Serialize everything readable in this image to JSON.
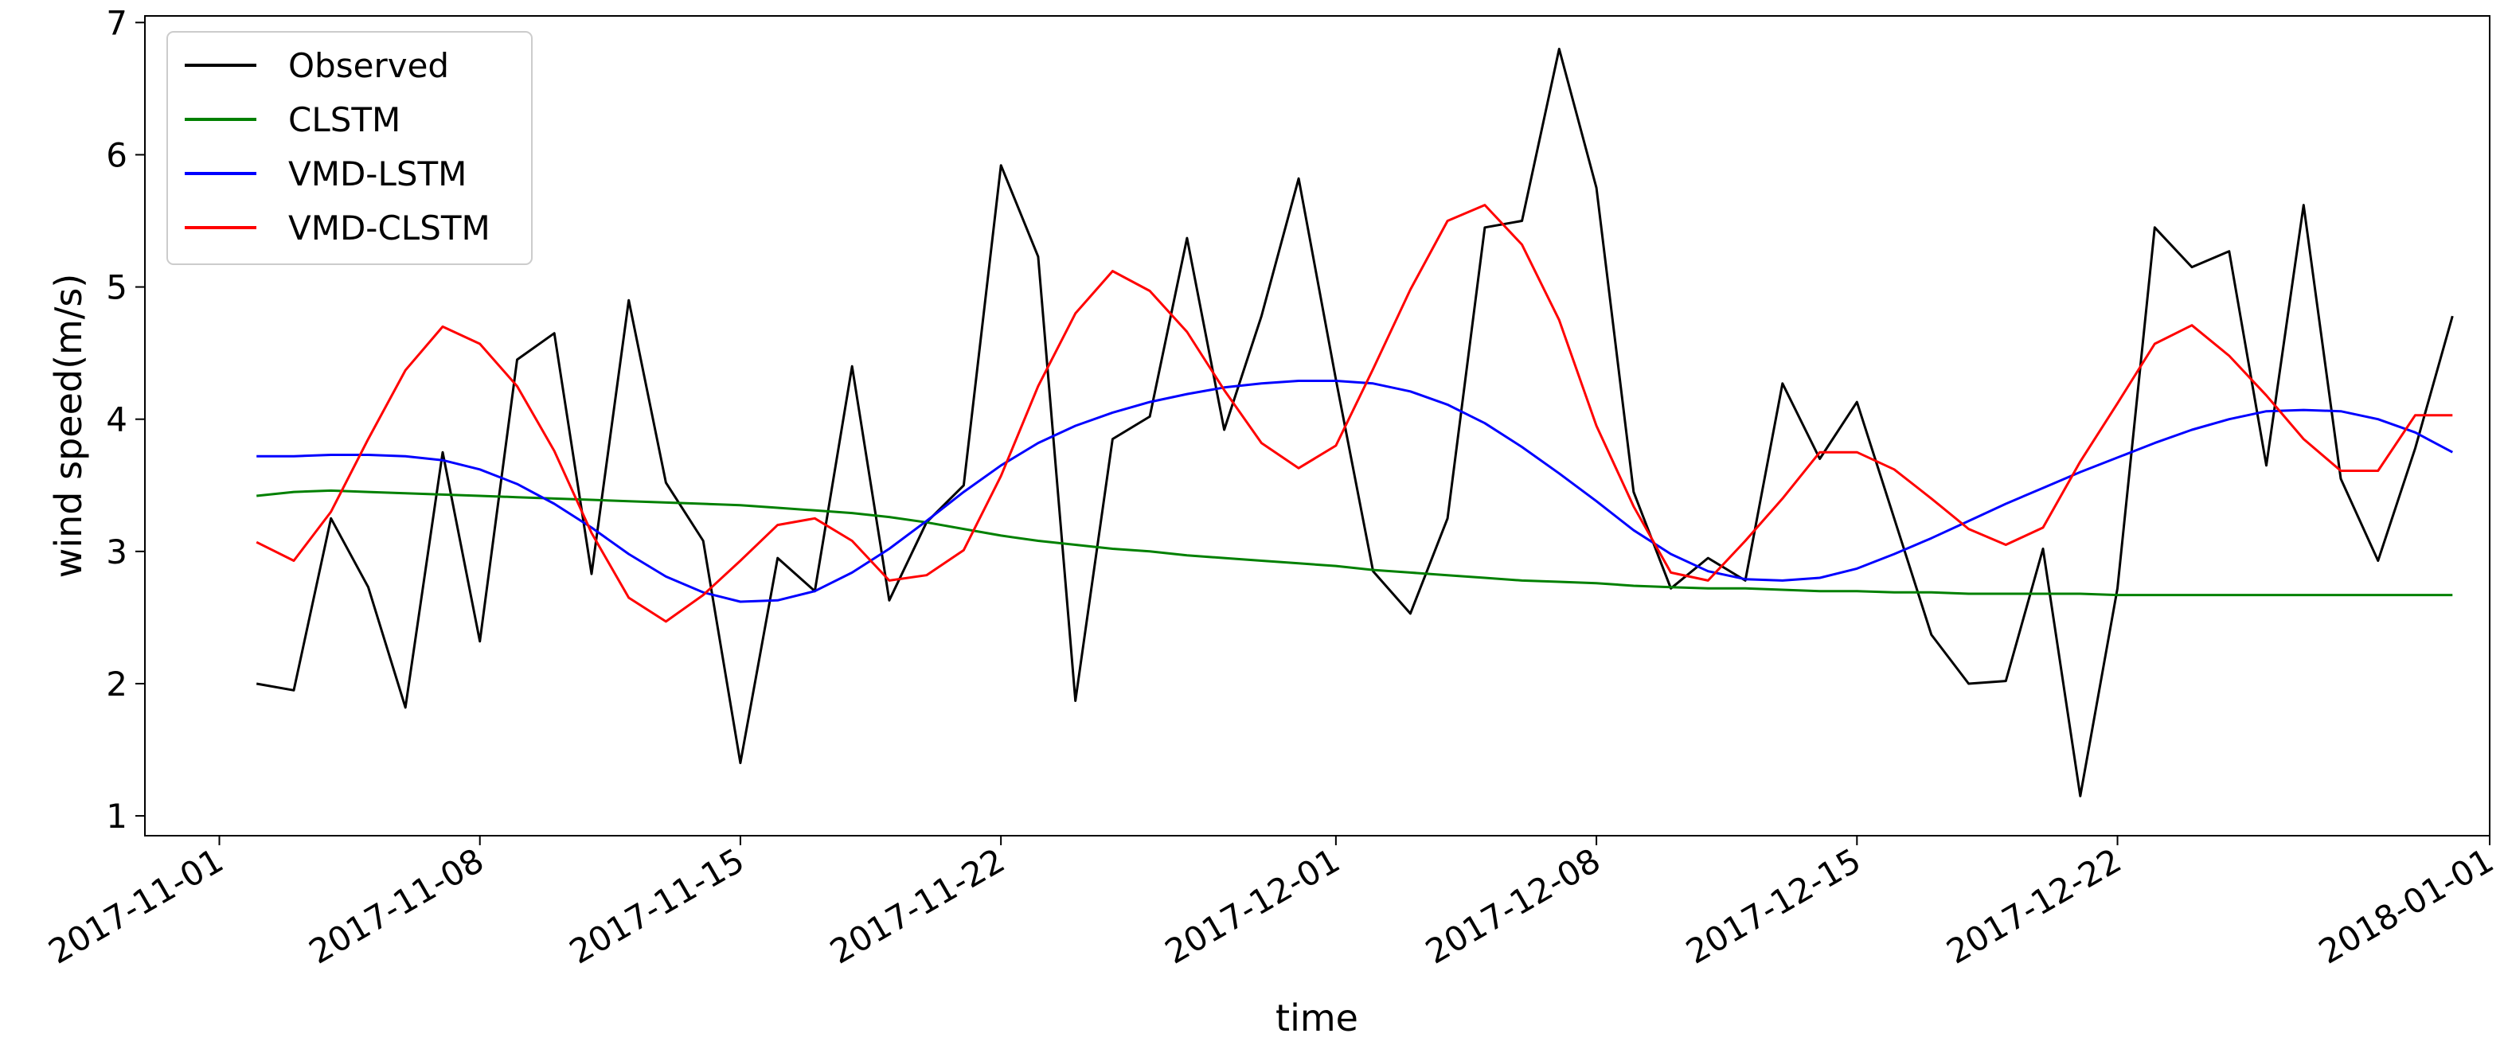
{
  "chart_data": {
    "type": "line",
    "title": "",
    "xlabel": "time",
    "ylabel": "wind speed(m/s)",
    "xlim": [
      "2017-10-30",
      "2018-01-01"
    ],
    "ylim": [
      0.85,
      7.05
    ],
    "grid": false,
    "legend_position": "upper-left",
    "x_ticks": [
      "2017-11-01",
      "2017-11-08",
      "2017-11-15",
      "2017-11-22",
      "2017-12-01",
      "2017-12-08",
      "2017-12-15",
      "2017-12-22",
      "2018-01-01"
    ],
    "y_ticks": [
      1,
      2,
      3,
      4,
      5,
      6,
      7
    ],
    "x": [
      "2017-11-02",
      "2017-11-03",
      "2017-11-04",
      "2017-11-05",
      "2017-11-06",
      "2017-11-07",
      "2017-11-08",
      "2017-11-09",
      "2017-11-10",
      "2017-11-11",
      "2017-11-12",
      "2017-11-13",
      "2017-11-14",
      "2017-11-15",
      "2017-11-16",
      "2017-11-17",
      "2017-11-18",
      "2017-11-19",
      "2017-11-20",
      "2017-11-21",
      "2017-11-22",
      "2017-11-23",
      "2017-11-24",
      "2017-11-25",
      "2017-11-26",
      "2017-11-27",
      "2017-11-28",
      "2017-11-29",
      "2017-11-30",
      "2017-12-01",
      "2017-12-02",
      "2017-12-03",
      "2017-12-04",
      "2017-12-05",
      "2017-12-06",
      "2017-12-07",
      "2017-12-08",
      "2017-12-09",
      "2017-12-10",
      "2017-12-11",
      "2017-12-12",
      "2017-12-13",
      "2017-12-14",
      "2017-12-15",
      "2017-12-16",
      "2017-12-17",
      "2017-12-18",
      "2017-12-19",
      "2017-12-20",
      "2017-12-21",
      "2017-12-22",
      "2017-12-23",
      "2017-12-24",
      "2017-12-25",
      "2017-12-26",
      "2017-12-27",
      "2017-12-28",
      "2017-12-29",
      "2017-12-30",
      "2017-12-31"
    ],
    "series": [
      {
        "name": "Observed",
        "color": "#000000",
        "values": [
          2.0,
          1.95,
          3.25,
          2.73,
          1.82,
          3.75,
          2.32,
          4.45,
          4.65,
          2.83,
          4.9,
          3.52,
          3.08,
          1.4,
          2.95,
          2.7,
          4.4,
          2.63,
          3.22,
          3.5,
          5.92,
          5.23,
          1.87,
          3.85,
          4.02,
          5.37,
          3.92,
          4.78,
          5.82,
          4.3,
          2.85,
          2.53,
          3.25,
          5.45,
          5.5,
          6.8,
          5.75,
          3.45,
          2.72,
          2.95,
          2.78,
          4.27,
          3.7,
          4.13,
          3.25,
          2.37,
          2.0,
          2.02,
          3.02,
          1.15,
          2.72,
          5.45,
          5.15,
          5.27,
          3.65,
          5.62,
          3.55,
          2.93,
          3.78,
          4.78
        ]
      },
      {
        "name": "CLSTM",
        "color": "#008000",
        "values": [
          3.42,
          3.45,
          3.46,
          3.45,
          3.44,
          3.43,
          3.42,
          3.41,
          3.4,
          3.39,
          3.38,
          3.37,
          3.36,
          3.35,
          3.33,
          3.31,
          3.29,
          3.26,
          3.22,
          3.17,
          3.12,
          3.08,
          3.05,
          3.02,
          3.0,
          2.97,
          2.95,
          2.93,
          2.91,
          2.89,
          2.86,
          2.84,
          2.82,
          2.8,
          2.78,
          2.77,
          2.76,
          2.74,
          2.73,
          2.72,
          2.72,
          2.71,
          2.7,
          2.7,
          2.69,
          2.69,
          2.68,
          2.68,
          2.68,
          2.68,
          2.67,
          2.67,
          2.67,
          2.67,
          2.67,
          2.67,
          2.67,
          2.67,
          2.67,
          2.67
        ]
      },
      {
        "name": "VMD-LSTM",
        "color": "#0000ff",
        "values": [
          3.72,
          3.72,
          3.73,
          3.73,
          3.72,
          3.69,
          3.62,
          3.51,
          3.36,
          3.18,
          2.98,
          2.81,
          2.69,
          2.62,
          2.63,
          2.7,
          2.84,
          3.02,
          3.23,
          3.45,
          3.65,
          3.82,
          3.95,
          4.05,
          4.13,
          4.19,
          4.24,
          4.27,
          4.29,
          4.29,
          4.27,
          4.21,
          4.11,
          3.97,
          3.79,
          3.59,
          3.38,
          3.16,
          2.98,
          2.85,
          2.79,
          2.78,
          2.8,
          2.87,
          2.98,
          3.1,
          3.23,
          3.36,
          3.48,
          3.6,
          3.71,
          3.82,
          3.92,
          4.0,
          4.06,
          4.07,
          4.06,
          4.0,
          3.9,
          3.75
        ]
      },
      {
        "name": "VMD-CLSTM",
        "color": "#ff0000",
        "values": [
          3.07,
          2.93,
          3.3,
          3.85,
          4.37,
          4.7,
          4.57,
          4.25,
          3.76,
          3.14,
          2.65,
          2.47,
          2.67,
          2.93,
          3.2,
          3.25,
          3.08,
          2.78,
          2.82,
          3.01,
          3.57,
          4.25,
          4.8,
          5.12,
          4.97,
          4.66,
          4.22,
          3.82,
          3.63,
          3.8,
          4.38,
          4.98,
          5.5,
          5.62,
          5.32,
          4.75,
          3.95,
          3.34,
          2.84,
          2.78,
          3.08,
          3.4,
          3.75,
          3.75,
          3.62,
          3.4,
          3.17,
          3.05,
          3.18,
          3.68,
          4.12,
          4.57,
          4.71,
          4.48,
          4.18,
          3.85,
          3.61,
          3.61,
          4.03,
          4.03
        ]
      }
    ]
  }
}
